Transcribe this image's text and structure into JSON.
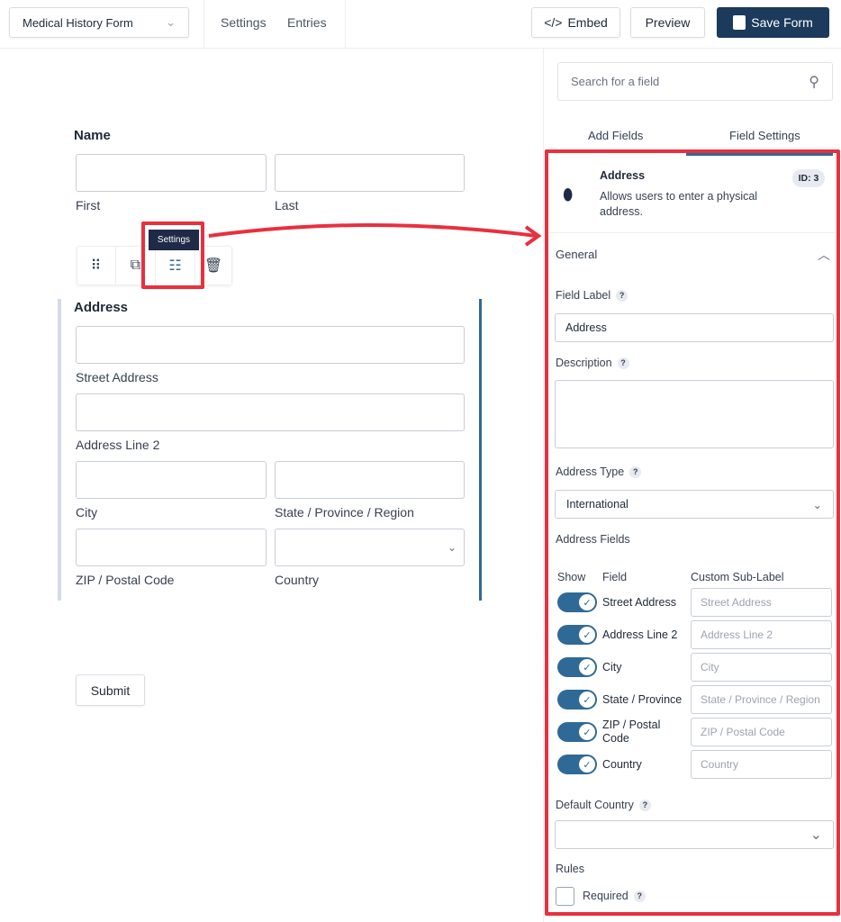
{
  "header": {
    "form_name": "Medical History Form",
    "nav": [
      "Settings",
      "Entries"
    ],
    "embed": "Embed",
    "preview": "Preview",
    "save": "Save Form"
  },
  "canvas": {
    "name_label": "Name",
    "first": "First",
    "last": "Last",
    "tooltip": "Settings",
    "address_label": "Address",
    "sublabels": {
      "street": "Street Address",
      "line2": "Address Line 2",
      "city": "City",
      "state": "State / Province / Region",
      "zip": "ZIP / Postal Code",
      "country": "Country"
    },
    "submit": "Submit"
  },
  "sidebar": {
    "search_placeholder": "Search for a field",
    "tabs": [
      "Add Fields",
      "Field Settings"
    ],
    "field": {
      "title": "Address",
      "description": "Allows users to enter a physical address.",
      "id": "ID: 3"
    },
    "section": "General",
    "field_label": "Field Label",
    "field_label_value": "Address",
    "description_label": "Description",
    "address_type_label": "Address Type",
    "address_type_value": "International",
    "address_fields_label": "Address Fields",
    "columns": [
      "Show",
      "Field",
      "Custom Sub-Label"
    ],
    "rows": [
      {
        "field": "Street Address",
        "placeholder": "Street Address",
        "on": true
      },
      {
        "field": "Address Line 2",
        "placeholder": "Address Line 2",
        "on": true
      },
      {
        "field": "City",
        "placeholder": "City",
        "on": true
      },
      {
        "field": "State / Province",
        "placeholder": "State / Province / Region",
        "on": true
      },
      {
        "field": "ZIP / Postal Code",
        "placeholder": "ZIP / Postal Code",
        "on": true
      },
      {
        "field": "Country",
        "placeholder": "Country",
        "on": true
      }
    ],
    "default_country_label": "Default Country",
    "default_country_value": "",
    "rules_label": "Rules",
    "required_label": "Required",
    "required_checked": false,
    "help": "?"
  },
  "colors": {
    "accent": "#2f6a96",
    "save": "#1b3a5c",
    "highlight": "#e8303f"
  }
}
